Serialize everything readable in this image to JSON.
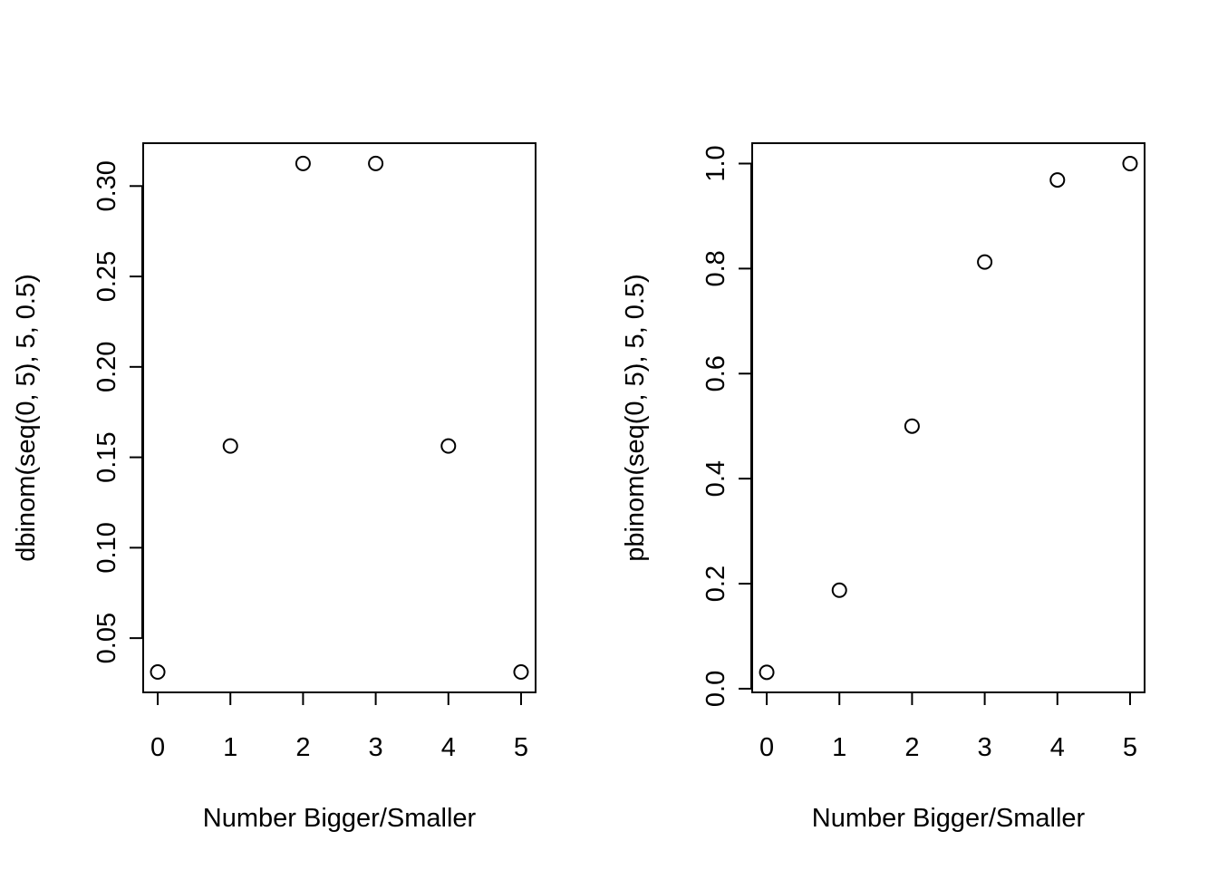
{
  "chart_data": [
    {
      "type": "scatter",
      "x": [
        0,
        1,
        2,
        3,
        4,
        5
      ],
      "y": [
        0.03125,
        0.15625,
        0.3125,
        0.3125,
        0.15625,
        0.03125
      ],
      "xlabel": "Number Bigger/Smaller",
      "ylabel": "dbinom(seq(0, 5), 5, 0.5)",
      "xticks": [
        "0",
        "1",
        "2",
        "3",
        "4",
        "5"
      ],
      "yticks": [
        "0.05",
        "0.10",
        "0.15",
        "0.20",
        "0.25",
        "0.30"
      ],
      "xlim": [
        -0.2,
        5.2
      ],
      "ylim": [
        0.02,
        0.3237
      ],
      "marker": "open-circle",
      "grid": false
    },
    {
      "type": "scatter",
      "x": [
        0,
        1,
        2,
        3,
        4,
        5
      ],
      "y": [
        0.03125,
        0.1875,
        0.5,
        0.8125,
        0.96875,
        1.0
      ],
      "xlabel": "Number Bigger/Smaller",
      "ylabel": "pbinom(seq(0, 5), 5, 0.5)",
      "xticks": [
        "0",
        "1",
        "2",
        "3",
        "4",
        "5"
      ],
      "yticks": [
        "0.0",
        "0.2",
        "0.4",
        "0.6",
        "0.8",
        "1.0"
      ],
      "xlim": [
        -0.2,
        5.2
      ],
      "ylim": [
        -0.007,
        1.0388
      ],
      "marker": "open-circle",
      "grid": false
    }
  ]
}
